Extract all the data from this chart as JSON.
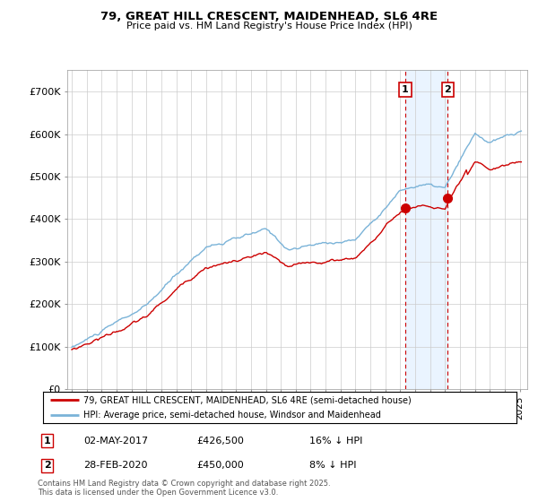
{
  "title_line1": "79, GREAT HILL CRESCENT, MAIDENHEAD, SL6 4RE",
  "title_line2": "Price paid vs. HM Land Registry's House Price Index (HPI)",
  "ylim": [
    0,
    750000
  ],
  "yticks": [
    0,
    100000,
    200000,
    300000,
    400000,
    500000,
    600000,
    700000
  ],
  "ytick_labels": [
    "£0",
    "£100K",
    "£200K",
    "£300K",
    "£400K",
    "£500K",
    "£600K",
    "£700K"
  ],
  "hpi_color": "#7ab3d8",
  "price_color": "#cc0000",
  "vline_color": "#cc0000",
  "marker1_x": 2017.33,
  "marker1_y": 426500,
  "marker2_x": 2020.17,
  "marker2_y": 450000,
  "marker1_label": "1",
  "marker2_label": "2",
  "marker1_date": "02-MAY-2017",
  "marker1_price": "£426,500",
  "marker1_note": "16% ↓ HPI",
  "marker2_date": "28-FEB-2020",
  "marker2_price": "£450,000",
  "marker2_note": "8% ↓ HPI",
  "legend_line1": "79, GREAT HILL CRESCENT, MAIDENHEAD, SL6 4RE (semi-detached house)",
  "legend_line2": "HPI: Average price, semi-detached house, Windsor and Maidenhead",
  "footnote": "Contains HM Land Registry data © Crown copyright and database right 2025.\nThis data is licensed under the Open Government Licence v3.0.",
  "background_color": "#ffffff",
  "grid_color": "#cccccc",
  "shaded_region_color": "#ddeeff",
  "xlim_start": 1994.7,
  "xlim_end": 2025.5
}
